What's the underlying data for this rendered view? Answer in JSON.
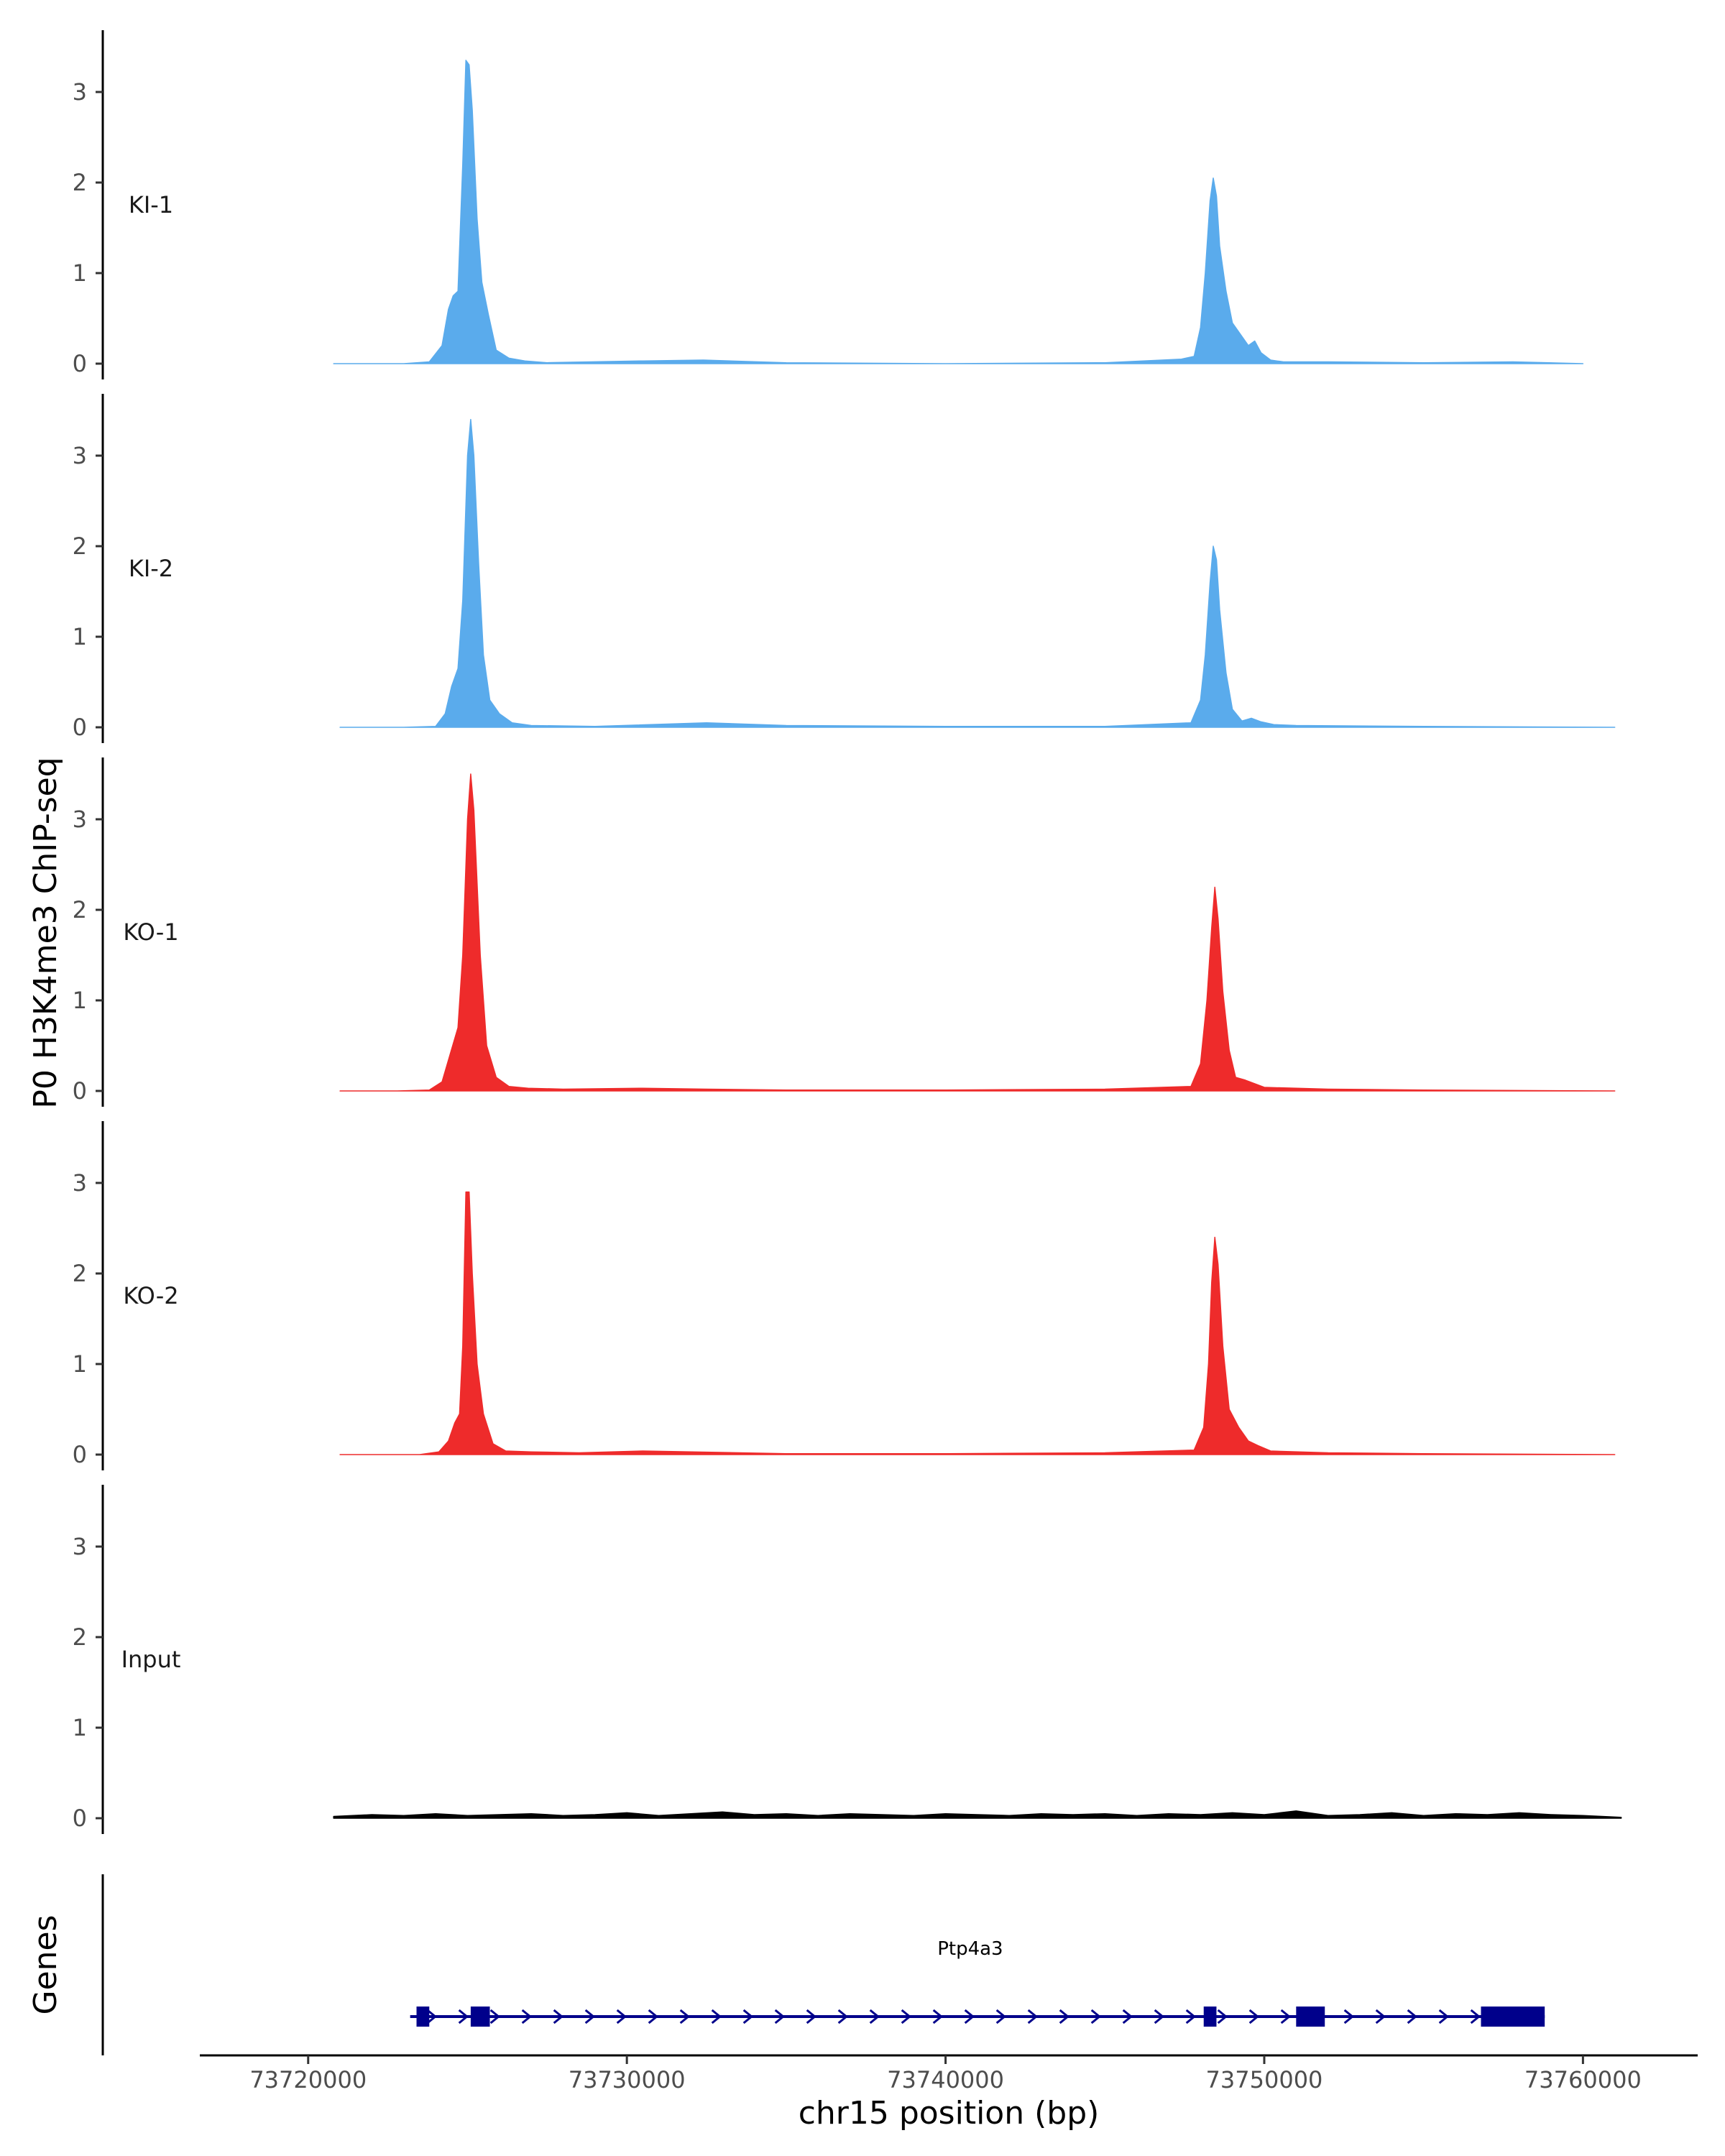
{
  "chart_data": {
    "type": "area",
    "title": "",
    "ylabel": "P0 H3K4me3 ChIP-seq",
    "xlabel": "chr15 position (bp)",
    "genes_label": "Genes",
    "xlim": [
      73716600,
      73763600
    ],
    "ylim": [
      0,
      3.6
    ],
    "y_ticks": [
      0,
      1,
      2,
      3
    ],
    "x_ticks": [
      73720000,
      73730000,
      73740000,
      73750000,
      73760000
    ],
    "x_tick_labels": [
      "73720000",
      "73730000",
      "73740000",
      "73750000",
      "73760000"
    ],
    "colors": {
      "KI": "#5aabec",
      "KO": "#ee2b2b",
      "Input": "#000000",
      "gene": "#00008b"
    },
    "tracks": [
      {
        "name": "KI-1",
        "color": "#5aabec",
        "x": [
          73720800,
          73723000,
          73723800,
          73724200,
          73724400,
          73724550,
          73724700,
          73724850,
          73724950,
          73725050,
          73725150,
          73725300,
          73725450,
          73725650,
          73725900,
          73726300,
          73726800,
          73727500,
          73730500,
          73732400,
          73735000,
          73740000,
          73745000,
          73747400,
          73747800,
          73748000,
          73748150,
          73748300,
          73748400,
          73748500,
          73748600,
          73748800,
          73749000,
          73749300,
          73749500,
          73749700,
          73749900,
          73750200,
          73750600,
          73752000,
          73755000,
          73757800,
          73760000
        ],
        "y": [
          0,
          0,
          0.02,
          0.2,
          0.6,
          0.75,
          0.8,
          2.2,
          3.35,
          3.3,
          2.8,
          1.6,
          0.9,
          0.55,
          0.15,
          0.06,
          0.03,
          0.01,
          0.03,
          0.04,
          0.01,
          0,
          0.01,
          0.05,
          0.08,
          0.4,
          1.0,
          1.8,
          2.05,
          1.85,
          1.3,
          0.8,
          0.45,
          0.3,
          0.2,
          0.25,
          0.12,
          0.04,
          0.02,
          0.02,
          0.01,
          0.02,
          0
        ]
      },
      {
        "name": "KI-2",
        "color": "#5aabec",
        "x": [
          73721000,
          73723000,
          73724000,
          73724300,
          73724500,
          73724700,
          73724850,
          73725000,
          73725100,
          73725200,
          73725350,
          73725500,
          73725700,
          73726000,
          73726400,
          73727000,
          73729000,
          73732500,
          73735000,
          73740000,
          73745000,
          73747700,
          73748000,
          73748150,
          73748300,
          73748400,
          73748500,
          73748600,
          73748800,
          73749000,
          73749300,
          73749600,
          73749900,
          73750300,
          73751000,
          73755000,
          73761000
        ],
        "y": [
          0,
          0,
          0.01,
          0.15,
          0.45,
          0.65,
          1.4,
          3.0,
          3.4,
          3.0,
          1.8,
          0.8,
          0.3,
          0.15,
          0.05,
          0.02,
          0.01,
          0.05,
          0.02,
          0.01,
          0.01,
          0.05,
          0.3,
          0.8,
          1.6,
          2.0,
          1.85,
          1.3,
          0.6,
          0.2,
          0.07,
          0.1,
          0.06,
          0.03,
          0.02,
          0.01,
          0
        ]
      },
      {
        "name": "KO-1",
        "color": "#ee2b2b",
        "x": [
          73721000,
          73722800,
          73723800,
          73724200,
          73724450,
          73724700,
          73724850,
          73725000,
          73725100,
          73725200,
          73725400,
          73725600,
          73725900,
          73726300,
          73726900,
          73728000,
          73730500,
          73732500,
          73735000,
          73740000,
          73745000,
          73747700,
          73748000,
          73748200,
          73748350,
          73748450,
          73748550,
          73748700,
          73748900,
          73749100,
          73749400,
          73749700,
          73750000,
          73752000,
          73755000,
          73761000
        ],
        "y": [
          0,
          0,
          0.01,
          0.1,
          0.4,
          0.7,
          1.5,
          3.0,
          3.5,
          3.1,
          1.5,
          0.5,
          0.15,
          0.05,
          0.03,
          0.02,
          0.03,
          0.02,
          0.01,
          0.01,
          0.02,
          0.05,
          0.3,
          1.0,
          1.8,
          2.25,
          1.9,
          1.1,
          0.45,
          0.15,
          0.12,
          0.08,
          0.04,
          0.02,
          0.01,
          0
        ]
      },
      {
        "name": "KO-2",
        "color": "#ee2b2b",
        "x": [
          73721000,
          73723500,
          73724100,
          73724400,
          73724600,
          73724750,
          73724850,
          73724950,
          73725050,
          73725150,
          73725300,
          73725500,
          73725800,
          73726200,
          73727000,
          73728500,
          73730500,
          73735000,
          73740000,
          73745000,
          73747800,
          73748100,
          73748250,
          73748350,
          73748450,
          73748550,
          73748700,
          73748900,
          73749200,
          73749500,
          73749800,
          73750200,
          73752000,
          73755000,
          73761000
        ],
        "y": [
          0,
          0,
          0.03,
          0.15,
          0.35,
          0.45,
          1.2,
          2.9,
          2.9,
          2.0,
          1.0,
          0.45,
          0.12,
          0.04,
          0.03,
          0.02,
          0.04,
          0.01,
          0.01,
          0.02,
          0.05,
          0.3,
          1.0,
          1.9,
          2.4,
          2.1,
          1.2,
          0.5,
          0.3,
          0.15,
          0.1,
          0.04,
          0.02,
          0.01,
          0
        ]
      },
      {
        "name": "Input",
        "color": "#000000",
        "x": [
          73720800,
          73722000,
          73723000,
          73724000,
          73725000,
          73726000,
          73727000,
          73728000,
          73729000,
          73730000,
          73731000,
          73732000,
          73733000,
          73734000,
          73735000,
          73736000,
          73737000,
          73738000,
          73739000,
          73740000,
          73741000,
          73742000,
          73743000,
          73744000,
          73745000,
          73746000,
          73747000,
          73748000,
          73749000,
          73750000,
          73751000,
          73752000,
          73753000,
          73754000,
          73755000,
          73756000,
          73757000,
          73758000,
          73759000,
          73760000,
          73761200
        ],
        "y": [
          0.02,
          0.04,
          0.03,
          0.05,
          0.03,
          0.04,
          0.05,
          0.03,
          0.04,
          0.06,
          0.03,
          0.05,
          0.07,
          0.04,
          0.05,
          0.03,
          0.05,
          0.04,
          0.03,
          0.05,
          0.04,
          0.03,
          0.05,
          0.04,
          0.05,
          0.03,
          0.05,
          0.04,
          0.06,
          0.04,
          0.08,
          0.03,
          0.04,
          0.06,
          0.03,
          0.05,
          0.04,
          0.06,
          0.04,
          0.03,
          0.01
        ]
      }
    ],
    "gene": {
      "name": "Ptp4a3",
      "start": 73723200,
      "end": 73758800,
      "strand": "+",
      "exons": [
        [
          73723400,
          73723800
        ],
        [
          73725100,
          73725700
        ],
        [
          73748100,
          73748500
        ],
        [
          73751000,
          73751900
        ],
        [
          73756800,
          73758800
        ]
      ]
    }
  }
}
